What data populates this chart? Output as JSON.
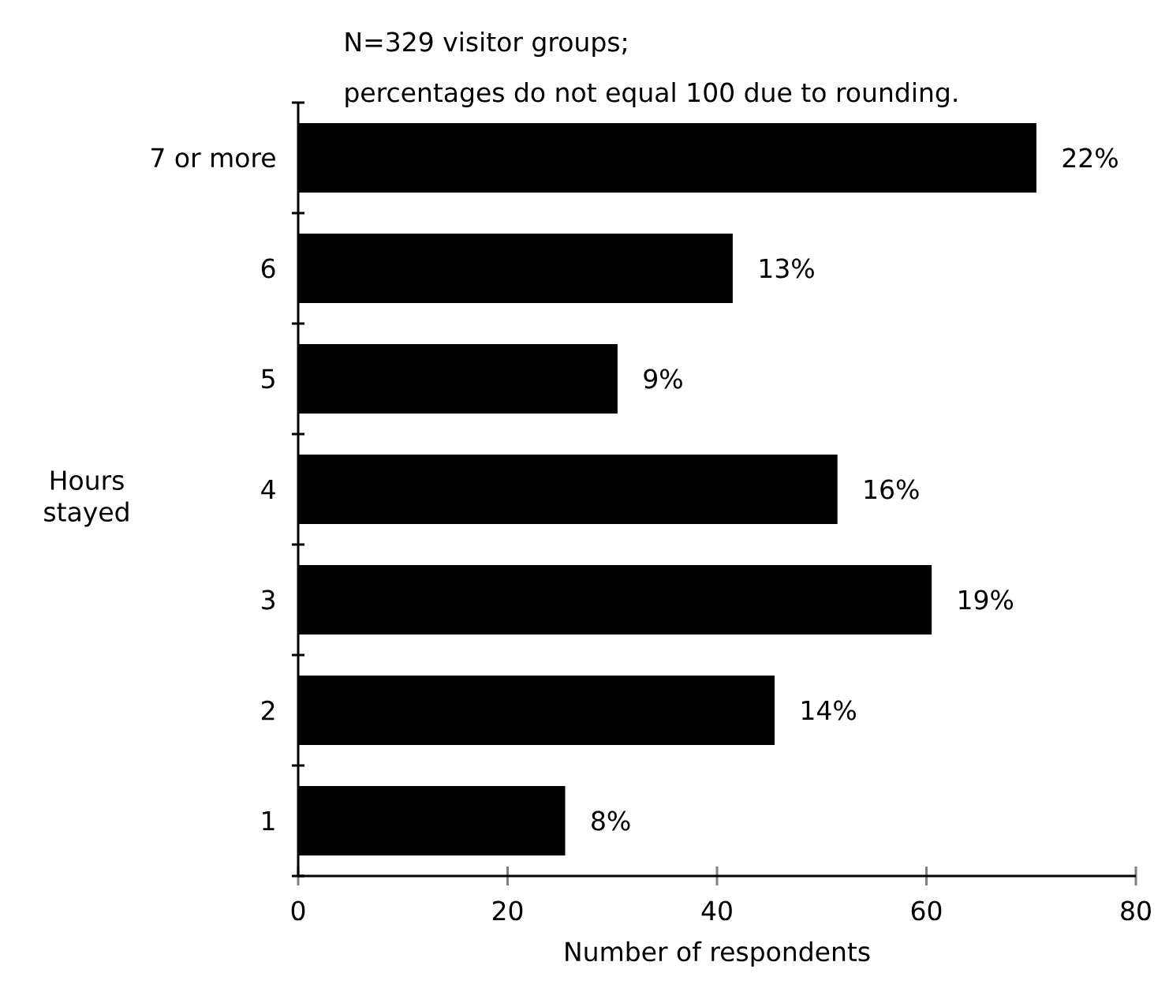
{
  "chart_data": {
    "type": "bar",
    "orientation": "horizontal",
    "title": "N=329 visitor groups;",
    "subtitle": "percentages do not equal 100 due to rounding.",
    "xlabel": "Number of respondents",
    "ylabel": "Hours stayed",
    "categories": [
      "7 or more",
      "6",
      "5",
      "4",
      "3",
      "2",
      "1"
    ],
    "values": [
      70.5,
      41.5,
      30.5,
      51.5,
      60.5,
      45.5,
      25.5
    ],
    "annotations": [
      {
        "text": "22%",
        "x": 70.5,
        "y": "7 or more"
      },
      {
        "text": "13%",
        "x": 41.5,
        "y": "6"
      },
      {
        "text": "9%",
        "x": 30.5,
        "y": "5"
      },
      {
        "text": "16%",
        "x": 51.5,
        "y": "4"
      },
      {
        "text": "19%",
        "x": 60.5,
        "y": "3"
      },
      {
        "text": "14%",
        "x": 45.5,
        "y": "2"
      },
      {
        "text": "8%",
        "x": 25.5,
        "y": "1"
      }
    ],
    "color": "#000000",
    "xlim": [
      0,
      80
    ],
    "xticks": [
      0,
      20,
      40,
      60,
      80
    ],
    "grid": false
  }
}
